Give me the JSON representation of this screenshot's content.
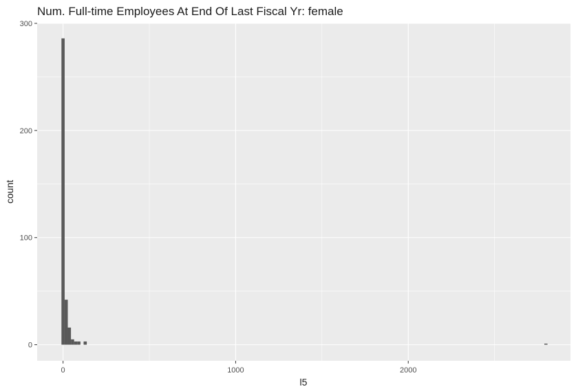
{
  "chart_data": {
    "type": "bar",
    "title": "Num. Full-time Employees At End Of Last Fiscal Yr: female",
    "xlabel": "l5",
    "ylabel": "count",
    "xlim": [
      -150,
      2940
    ],
    "ylim": [
      -15,
      300
    ],
    "x_ticks": [
      0,
      1000,
      2000
    ],
    "x_minor_ticks": [
      500,
      1500,
      2500
    ],
    "y_ticks": [
      0,
      100,
      200,
      300
    ],
    "y_minor_ticks": [
      50,
      150,
      250
    ],
    "bin_width": 18.3,
    "bins": [
      {
        "x0": -9.2,
        "x1": 9.2,
        "count": 286
      },
      {
        "x0": 9.2,
        "x1": 27.5,
        "count": 42
      },
      {
        "x0": 27.5,
        "x1": 45.8,
        "count": 16
      },
      {
        "x0": 45.8,
        "x1": 64.2,
        "count": 5
      },
      {
        "x0": 64.2,
        "x1": 82.5,
        "count": 3
      },
      {
        "x0": 82.5,
        "x1": 100.8,
        "count": 3
      },
      {
        "x0": 100.8,
        "x1": 119.2,
        "count": 0
      },
      {
        "x0": 119.2,
        "x1": 137.5,
        "count": 3
      },
      {
        "x0": 2788.3,
        "x1": 2806.7,
        "count": 1
      }
    ],
    "grid": true,
    "colors": {
      "panel": "#ebebeb",
      "grid": "#ffffff",
      "bar": "#595959"
    }
  }
}
